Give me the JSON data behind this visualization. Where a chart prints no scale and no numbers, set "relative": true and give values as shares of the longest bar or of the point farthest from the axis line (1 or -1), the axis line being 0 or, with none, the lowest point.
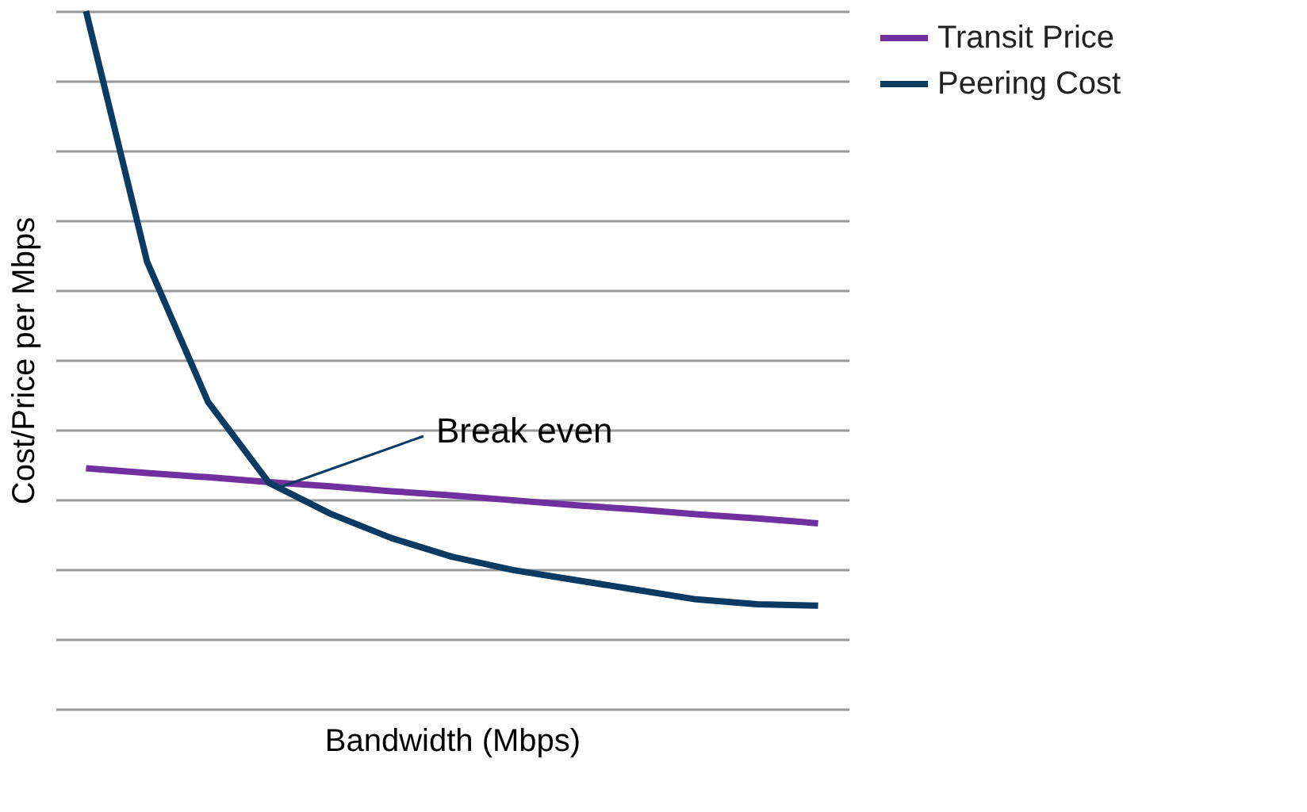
{
  "chart_data": {
    "type": "line",
    "relative": true,
    "xlabel": "Bandwidth (Mbps)",
    "ylabel": "Cost/Price per Mbps",
    "categories": [
      null,
      null,
      null,
      null,
      null,
      null,
      null,
      null,
      null,
      null,
      null,
      null,
      null
    ],
    "series": [
      {
        "name": "Transit Price",
        "color": "#7030a0",
        "values": [
          0.345,
          0.338,
          0.332,
          0.325,
          0.319,
          0.312,
          0.306,
          0.299,
          0.292,
          0.286,
          0.279,
          0.273,
          0.266
        ]
      },
      {
        "name": "Peering Cost",
        "color": "#0b3a62",
        "values": [
          1,
          0.641,
          0.44,
          0.324,
          0.28,
          0.245,
          0.218,
          0.199,
          0.185,
          0.171,
          0.157,
          0.15,
          0.148
        ]
      }
    ],
    "annotations": [
      "Break even"
    ],
    "grid": "y",
    "legend": "right",
    "tick_labels": false,
    "marker": "none",
    "line_style": "solid"
  }
}
